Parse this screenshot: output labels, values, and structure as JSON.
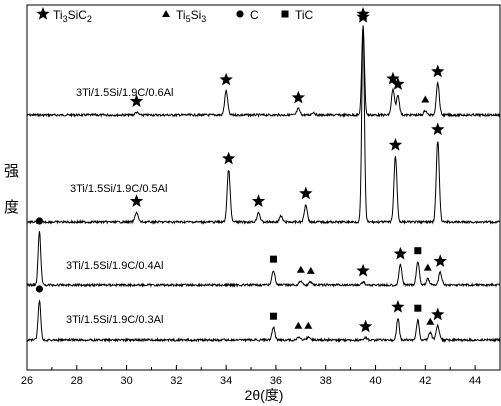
{
  "chart_data": {
    "type": "line",
    "xlabel": "2θ(度)",
    "ylabel": "强度",
    "xlim": [
      26,
      45
    ],
    "xticks": [
      26,
      28,
      30,
      32,
      34,
      36,
      38,
      40,
      42,
      44
    ],
    "xtick_labels": [
      "26",
      "28",
      "30",
      "32",
      "34",
      "36",
      "38",
      "40",
      "42",
      "44"
    ],
    "grid": false,
    "legend": [
      {
        "marker": "star",
        "label": "Ti3SiC2",
        "main": "Ti",
        "sub1": "3",
        "mid": "SiC",
        "sub2": "2"
      },
      {
        "marker": "triangle",
        "label": "Ti5Si3",
        "main": "Ti",
        "sub1": "5",
        "mid": "Si",
        "sub2": "3"
      },
      {
        "marker": "circle",
        "label": "C",
        "main": "C",
        "sub1": "",
        "mid": "",
        "sub2": ""
      },
      {
        "marker": "square",
        "label": "TiC",
        "main": "TiC",
        "sub1": "",
        "mid": "",
        "sub2": ""
      }
    ],
    "series": [
      {
        "name": "3Ti/1.5Si/1.9C/0.6Al",
        "baseline_rel": 0.0,
        "peaks": [
          {
            "x": 30.4,
            "h": 0.03,
            "phase": "Ti3SiC2"
          },
          {
            "x": 34.0,
            "h": 0.27,
            "phase": "Ti3SiC2"
          },
          {
            "x": 36.9,
            "h": 0.07,
            "phase": "Ti3SiC2"
          },
          {
            "x": 37.5,
            "h": 0.03,
            "phase": null
          },
          {
            "x": 39.5,
            "h": 1.0,
            "phase": "Ti3SiC2"
          },
          {
            "x": 40.7,
            "h": 0.28,
            "phase": "Ti3SiC2"
          },
          {
            "x": 40.9,
            "h": 0.22,
            "phase": "Ti3SiC2"
          },
          {
            "x": 42.0,
            "h": 0.05,
            "phase": "Ti5Si3"
          },
          {
            "x": 42.5,
            "h": 0.36,
            "phase": "Ti3SiC2"
          }
        ]
      },
      {
        "name": "3Ti/1.5Si/1.9C/0.5Al",
        "baseline_rel": 0.0,
        "peaks": [
          {
            "x": 30.4,
            "h": 0.05,
            "phase": "Ti3SiC2"
          },
          {
            "x": 34.1,
            "h": 0.27,
            "phase": "Ti3SiC2"
          },
          {
            "x": 35.3,
            "h": 0.05,
            "phase": "Ti3SiC2"
          },
          {
            "x": 36.2,
            "h": 0.03,
            "phase": null
          },
          {
            "x": 37.2,
            "h": 0.09,
            "phase": "Ti3SiC2"
          },
          {
            "x": 39.5,
            "h": 1.0,
            "phase": "Ti3SiC2"
          },
          {
            "x": 40.8,
            "h": 0.34,
            "phase": "Ti3SiC2"
          },
          {
            "x": 42.5,
            "h": 0.42,
            "phase": "Ti3SiC2"
          }
        ]
      },
      {
        "name": "3Ti/1.5Si/1.9C/0.4Al",
        "baseline_rel": 0.0,
        "peaks": [
          {
            "x": 26.5,
            "h": 1.0,
            "phase": "C"
          },
          {
            "x": 35.9,
            "h": 0.28,
            "phase": "TiC"
          },
          {
            "x": 37.0,
            "h": 0.08,
            "phase": "Ti5Si3"
          },
          {
            "x": 37.4,
            "h": 0.06,
            "phase": "Ti5Si3"
          },
          {
            "x": 39.5,
            "h": 0.06,
            "phase": "Ti3SiC2"
          },
          {
            "x": 41.0,
            "h": 0.38,
            "phase": "Ti3SiC2"
          },
          {
            "x": 41.7,
            "h": 0.44,
            "phase": "TiC"
          },
          {
            "x": 42.1,
            "h": 0.12,
            "phase": "Ti5Si3"
          },
          {
            "x": 42.6,
            "h": 0.24,
            "phase": "Ti3SiC2"
          }
        ]
      },
      {
        "name": "3Ti/1.5Si/1.9C/0.3Al",
        "baseline_rel": 0.0,
        "peaks": [
          {
            "x": 26.5,
            "h": 1.0,
            "phase": "C"
          },
          {
            "x": 35.9,
            "h": 0.32,
            "phase": "TiC"
          },
          {
            "x": 36.9,
            "h": 0.08,
            "phase": "Ti5Si3"
          },
          {
            "x": 37.3,
            "h": 0.08,
            "phase": "Ti5Si3"
          },
          {
            "x": 39.6,
            "h": 0.06,
            "phase": "Ti3SiC2"
          },
          {
            "x": 40.9,
            "h": 0.55,
            "phase": "Ti3SiC2"
          },
          {
            "x": 41.7,
            "h": 0.52,
            "phase": "TiC"
          },
          {
            "x": 42.2,
            "h": 0.18,
            "phase": "Ti5Si3"
          },
          {
            "x": 42.5,
            "h": 0.36,
            "phase": "Ti3SiC2"
          }
        ]
      }
    ]
  }
}
